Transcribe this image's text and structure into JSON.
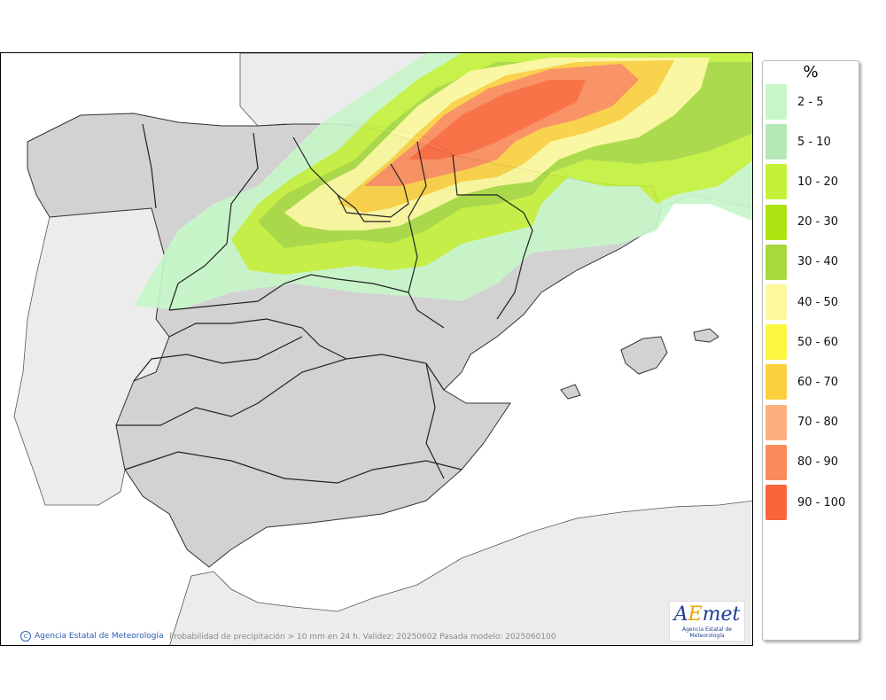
{
  "map": {
    "credit_text": "Agencia Estatal de Meteorología",
    "caption": "Probabilidad de precipitación > 10 mm en 24 h. Validez: 20250602 Pasada modelo: 2025060100",
    "logo": {
      "main": "AEmet",
      "sub": "Agencia Estatal de Meteorología"
    },
    "colors": {
      "sea": "#ffffff",
      "land": "#d2d2d2",
      "foreign_land": "#ececec",
      "border": "#333333"
    }
  },
  "legend": {
    "title": "%",
    "items": [
      {
        "label": "2 - 5",
        "color": "#c7f7c9"
      },
      {
        "label": "5 - 10",
        "color": "#b4e9b6"
      },
      {
        "label": "10 - 20",
        "color": "#c4f23a"
      },
      {
        "label": "20 - 30",
        "color": "#aee311"
      },
      {
        "label": "30 - 40",
        "color": "#a6d93d"
      },
      {
        "label": "40 - 50",
        "color": "#fbf99a"
      },
      {
        "label": "50 - 60",
        "color": "#fbf740"
      },
      {
        "label": "60 - 70",
        "color": "#fbd03e"
      },
      {
        "label": "70 - 80",
        "color": "#fbb07e"
      },
      {
        "label": "80 - 90",
        "color": "#fb8a5a"
      },
      {
        "label": "90 - 100",
        "color": "#fb6638"
      }
    ]
  }
}
